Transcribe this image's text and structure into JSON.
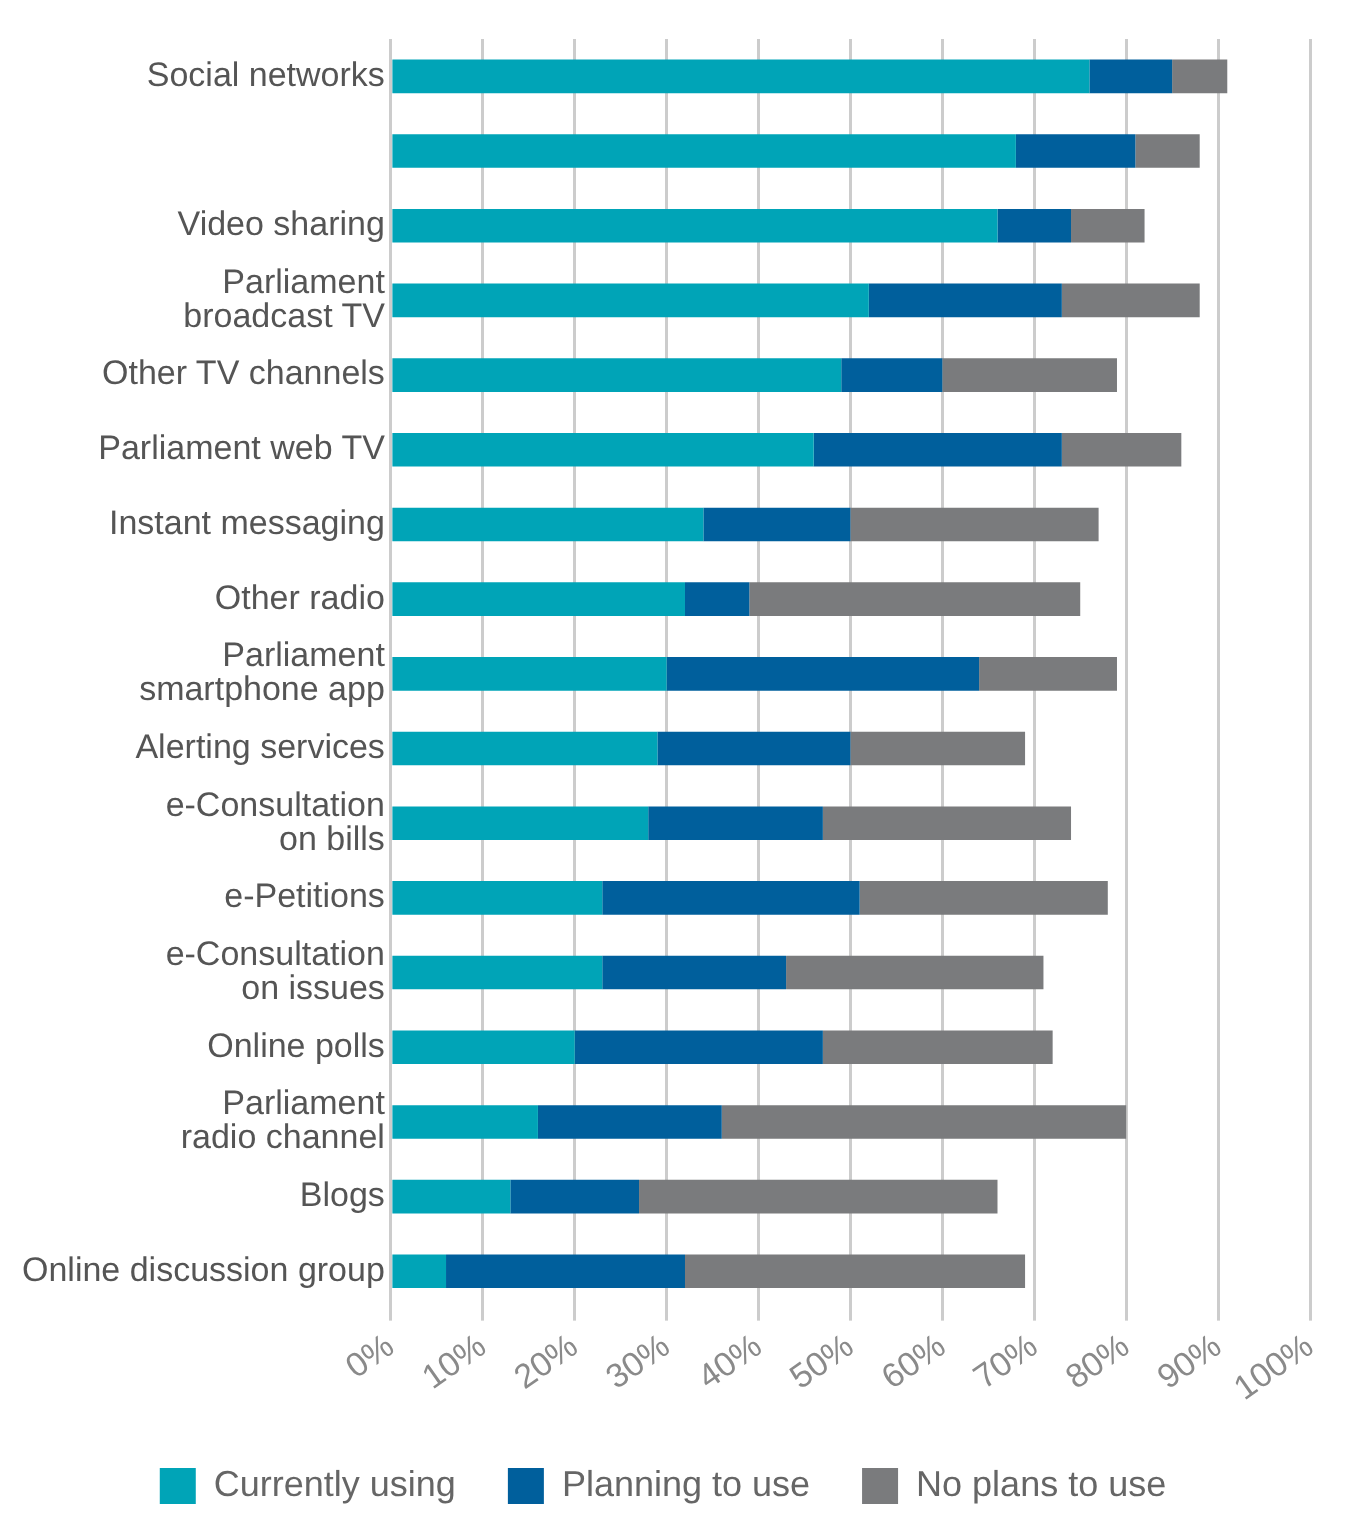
{
  "chart_data": {
    "type": "bar",
    "orientation": "horizontal",
    "stacked": true,
    "categories": [
      "Social networks",
      null,
      "Video sharing",
      "Parliament\nbroadcast TV",
      "Other TV channels",
      "Parliament web TV",
      "Instant messaging",
      "Other radio",
      "Parliament\nsmartphone app",
      "Alerting services",
      "e-Consultation\non bills",
      "e-Petitions",
      "e-Consultation\non issues",
      "Online polls",
      "Parliament\nradio channel",
      "Blogs",
      "Online discussion group"
    ],
    "series": [
      {
        "name": "Currently using",
        "color": "#00a4b7",
        "values": [
          76,
          68,
          66,
          52,
          49,
          46,
          34,
          32,
          30,
          29,
          28,
          23,
          23,
          20,
          16,
          13,
          6
        ]
      },
      {
        "name": "Planning to use",
        "color": "#005f9c",
        "values": [
          9,
          13,
          8,
          21,
          11,
          27,
          16,
          7,
          34,
          21,
          19,
          28,
          20,
          27,
          20,
          14,
          26
        ]
      },
      {
        "name": "No plans to use",
        "color": "#7a7b7d",
        "values": [
          6,
          7,
          8,
          15,
          19,
          13,
          27,
          36,
          15,
          19,
          27,
          27,
          28,
          25,
          44,
          39,
          37
        ]
      }
    ],
    "xlim": [
      0,
      100
    ],
    "xticks": [
      {
        "value": 0,
        "label": "0%"
      },
      {
        "value": 10,
        "label": "10%"
      },
      {
        "value": 20,
        "label": "20%"
      },
      {
        "value": 30,
        "label": "30%"
      },
      {
        "value": 40,
        "label": "40%"
      },
      {
        "value": 50,
        "label": "50%"
      },
      {
        "value": 60,
        "label": "60%"
      },
      {
        "value": 70,
        "label": "70%"
      },
      {
        "value": 80,
        "label": "80%"
      },
      {
        "value": 90,
        "label": "90%"
      },
      {
        "value": 100,
        "label": "100%"
      }
    ],
    "grid": "x",
    "legend": "bottom"
  }
}
